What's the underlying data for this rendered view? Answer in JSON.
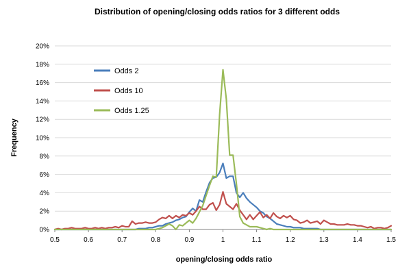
{
  "chart_data": {
    "type": "line",
    "title": "Distribution of opening/closing odds ratios for 3 different odds",
    "xlabel": "opening/closing odds ratio",
    "ylabel": "Frequency",
    "xlim": [
      0.5,
      1.5
    ],
    "ylim": [
      0,
      0.2
    ],
    "x_ticks": [
      0.5,
      0.6,
      0.7,
      0.8,
      0.9,
      1.0,
      1.1,
      1.2,
      1.3,
      1.4,
      1.5
    ],
    "x_tick_labels": [
      "0.5",
      "0.6",
      "0.7",
      "0.8",
      "0.9",
      "1",
      "1.1",
      "1.2",
      "1.3",
      "1.4",
      "1.5"
    ],
    "y_ticks": [
      0,
      0.02,
      0.04,
      0.06,
      0.08,
      0.1,
      0.12,
      0.14,
      0.16,
      0.18,
      0.2
    ],
    "y_tick_labels": [
      "0%",
      "2%",
      "4%",
      "6%",
      "8%",
      "10%",
      "12%",
      "14%",
      "16%",
      "18%",
      "20%"
    ],
    "grid": true,
    "legend_position": "top-left",
    "series": [
      {
        "name": "Odds 2",
        "color": "#4a7ebb",
        "x": [
          0.5,
          0.51,
          0.52,
          0.53,
          0.54,
          0.55,
          0.56,
          0.57,
          0.58,
          0.59,
          0.6,
          0.61,
          0.62,
          0.63,
          0.64,
          0.65,
          0.66,
          0.67,
          0.68,
          0.69,
          0.7,
          0.71,
          0.72,
          0.73,
          0.74,
          0.75,
          0.76,
          0.77,
          0.78,
          0.79,
          0.8,
          0.81,
          0.82,
          0.83,
          0.84,
          0.85,
          0.86,
          0.87,
          0.88,
          0.89,
          0.9,
          0.91,
          0.92,
          0.93,
          0.94,
          0.95,
          0.96,
          0.97,
          0.98,
          0.99,
          1.0,
          1.01,
          1.02,
          1.03,
          1.04,
          1.05,
          1.06,
          1.07,
          1.08,
          1.09,
          1.1,
          1.11,
          1.12,
          1.13,
          1.14,
          1.15,
          1.16,
          1.17,
          1.18,
          1.19,
          1.2,
          1.21,
          1.22,
          1.23,
          1.24,
          1.25,
          1.26,
          1.27,
          1.28,
          1.29,
          1.3,
          1.31,
          1.32,
          1.33,
          1.34,
          1.35,
          1.36,
          1.37,
          1.38,
          1.39,
          1.4,
          1.41,
          1.42,
          1.43,
          1.44,
          1.45,
          1.46,
          1.47,
          1.48,
          1.49,
          1.5
        ],
        "values": [
          0,
          0,
          0,
          0,
          0,
          0,
          0,
          0,
          0,
          0,
          0,
          0,
          0,
          0,
          0,
          0,
          0,
          0,
          0,
          0,
          0,
          0,
          0,
          0,
          0,
          0.001,
          0.001,
          0.001,
          0.002,
          0.002,
          0.003,
          0.004,
          0.004,
          0.006,
          0.007,
          0.008,
          0.01,
          0.011,
          0.013,
          0.014,
          0.019,
          0.023,
          0.02,
          0.032,
          0.03,
          0.041,
          0.051,
          0.056,
          0.057,
          0.062,
          0.072,
          0.056,
          0.058,
          0.058,
          0.04,
          0.035,
          0.04,
          0.034,
          0.03,
          0.027,
          0.024,
          0.02,
          0.018,
          0.014,
          0.012,
          0.009,
          0.006,
          0.005,
          0.004,
          0.003,
          0.003,
          0.002,
          0.002,
          0.002,
          0.001,
          0.001,
          0.001,
          0.001,
          0.001,
          0,
          0,
          0,
          0,
          0,
          0,
          0,
          0,
          0,
          0,
          0,
          0,
          0,
          0,
          0,
          0,
          0,
          0,
          0,
          0,
          0,
          0
        ]
      },
      {
        "name": "Odds 10",
        "color": "#c0504d",
        "x": [
          0.5,
          0.51,
          0.52,
          0.53,
          0.54,
          0.55,
          0.56,
          0.57,
          0.58,
          0.59,
          0.6,
          0.61,
          0.62,
          0.63,
          0.64,
          0.65,
          0.66,
          0.67,
          0.68,
          0.69,
          0.7,
          0.71,
          0.72,
          0.73,
          0.74,
          0.75,
          0.76,
          0.77,
          0.78,
          0.79,
          0.8,
          0.81,
          0.82,
          0.83,
          0.84,
          0.85,
          0.86,
          0.87,
          0.88,
          0.89,
          0.9,
          0.91,
          0.92,
          0.93,
          0.94,
          0.95,
          0.96,
          0.97,
          0.98,
          0.99,
          1.0,
          1.01,
          1.02,
          1.03,
          1.04,
          1.05,
          1.06,
          1.07,
          1.08,
          1.09,
          1.1,
          1.11,
          1.12,
          1.13,
          1.14,
          1.15,
          1.16,
          1.17,
          1.18,
          1.19,
          1.2,
          1.21,
          1.22,
          1.23,
          1.24,
          1.25,
          1.26,
          1.27,
          1.28,
          1.29,
          1.3,
          1.31,
          1.32,
          1.33,
          1.34,
          1.35,
          1.36,
          1.37,
          1.38,
          1.39,
          1.4,
          1.41,
          1.42,
          1.43,
          1.44,
          1.45,
          1.46,
          1.47,
          1.48,
          1.49,
          1.5
        ],
        "values": [
          0,
          0.001,
          0,
          0.001,
          0.001,
          0.002,
          0.001,
          0.001,
          0.001,
          0.002,
          0.001,
          0.001,
          0.002,
          0.001,
          0.002,
          0.001,
          0.002,
          0.002,
          0.003,
          0.002,
          0.004,
          0.003,
          0.003,
          0.009,
          0.006,
          0.007,
          0.007,
          0.008,
          0.007,
          0.007,
          0.008,
          0.011,
          0.013,
          0.012,
          0.015,
          0.012,
          0.015,
          0.013,
          0.016,
          0.015,
          0.018,
          0.016,
          0.02,
          0.025,
          0.022,
          0.022,
          0.027,
          0.029,
          0.021,
          0.027,
          0.041,
          0.028,
          0.025,
          0.022,
          0.028,
          0.021,
          0.016,
          0.011,
          0.016,
          0.011,
          0.015,
          0.019,
          0.013,
          0.016,
          0.012,
          0.018,
          0.014,
          0.012,
          0.015,
          0.013,
          0.015,
          0.011,
          0.01,
          0.007,
          0.008,
          0.01,
          0.007,
          0.008,
          0.009,
          0.006,
          0.01,
          0.008,
          0.006,
          0.006,
          0.005,
          0.005,
          0.005,
          0.006,
          0.005,
          0.005,
          0.004,
          0.004,
          0.003,
          0.002,
          0.003,
          0.001,
          0.002,
          0.002,
          0.001,
          0.002,
          0.004
        ]
      },
      {
        "name": "Odds 1.25",
        "color": "#9bbb59",
        "x": [
          0.5,
          0.51,
          0.52,
          0.53,
          0.54,
          0.55,
          0.56,
          0.57,
          0.58,
          0.59,
          0.6,
          0.61,
          0.62,
          0.63,
          0.64,
          0.65,
          0.66,
          0.67,
          0.68,
          0.69,
          0.7,
          0.71,
          0.72,
          0.73,
          0.74,
          0.75,
          0.76,
          0.77,
          0.78,
          0.79,
          0.8,
          0.81,
          0.82,
          0.83,
          0.84,
          0.85,
          0.86,
          0.87,
          0.88,
          0.89,
          0.9,
          0.91,
          0.92,
          0.93,
          0.94,
          0.95,
          0.96,
          0.97,
          0.98,
          0.99,
          1.0,
          1.01,
          1.02,
          1.03,
          1.04,
          1.05,
          1.06,
          1.07,
          1.08,
          1.09,
          1.1,
          1.11,
          1.12,
          1.13,
          1.14,
          1.15,
          1.16,
          1.17,
          1.18,
          1.19,
          1.2,
          1.21,
          1.22,
          1.23,
          1.24,
          1.25,
          1.26,
          1.27,
          1.28,
          1.29,
          1.3,
          1.31,
          1.32,
          1.33,
          1.34,
          1.35,
          1.36,
          1.37,
          1.38,
          1.39,
          1.4,
          1.41,
          1.42,
          1.43,
          1.44,
          1.45,
          1.46,
          1.47,
          1.48,
          1.49,
          1.5
        ],
        "values": [
          0,
          0,
          0,
          0,
          0,
          0,
          0,
          0,
          0,
          0,
          0,
          0,
          0,
          0,
          0,
          0,
          0,
          0,
          0,
          0,
          0,
          0,
          0,
          0,
          0,
          0,
          0,
          0,
          0,
          0,
          0,
          0.001,
          0.002,
          0.004,
          0.006,
          0.004,
          0,
          0.005,
          0.004,
          0.007,
          0.01,
          0.007,
          0.012,
          0.019,
          0.026,
          0.037,
          0.048,
          0.058,
          0.057,
          0.125,
          0.174,
          0.142,
          0.081,
          0.081,
          0.05,
          0.014,
          0.007,
          0.005,
          0.003,
          0.003,
          0.003,
          0.002,
          0.001,
          0,
          0.001,
          0,
          0,
          0,
          0,
          0,
          0,
          0,
          0,
          0,
          0,
          0,
          0,
          0,
          0,
          0,
          0,
          0,
          0,
          0,
          0,
          0,
          0,
          0,
          0,
          0,
          0,
          0,
          0,
          0,
          0,
          0,
          0,
          0,
          0,
          0,
          0
        ]
      }
    ]
  }
}
